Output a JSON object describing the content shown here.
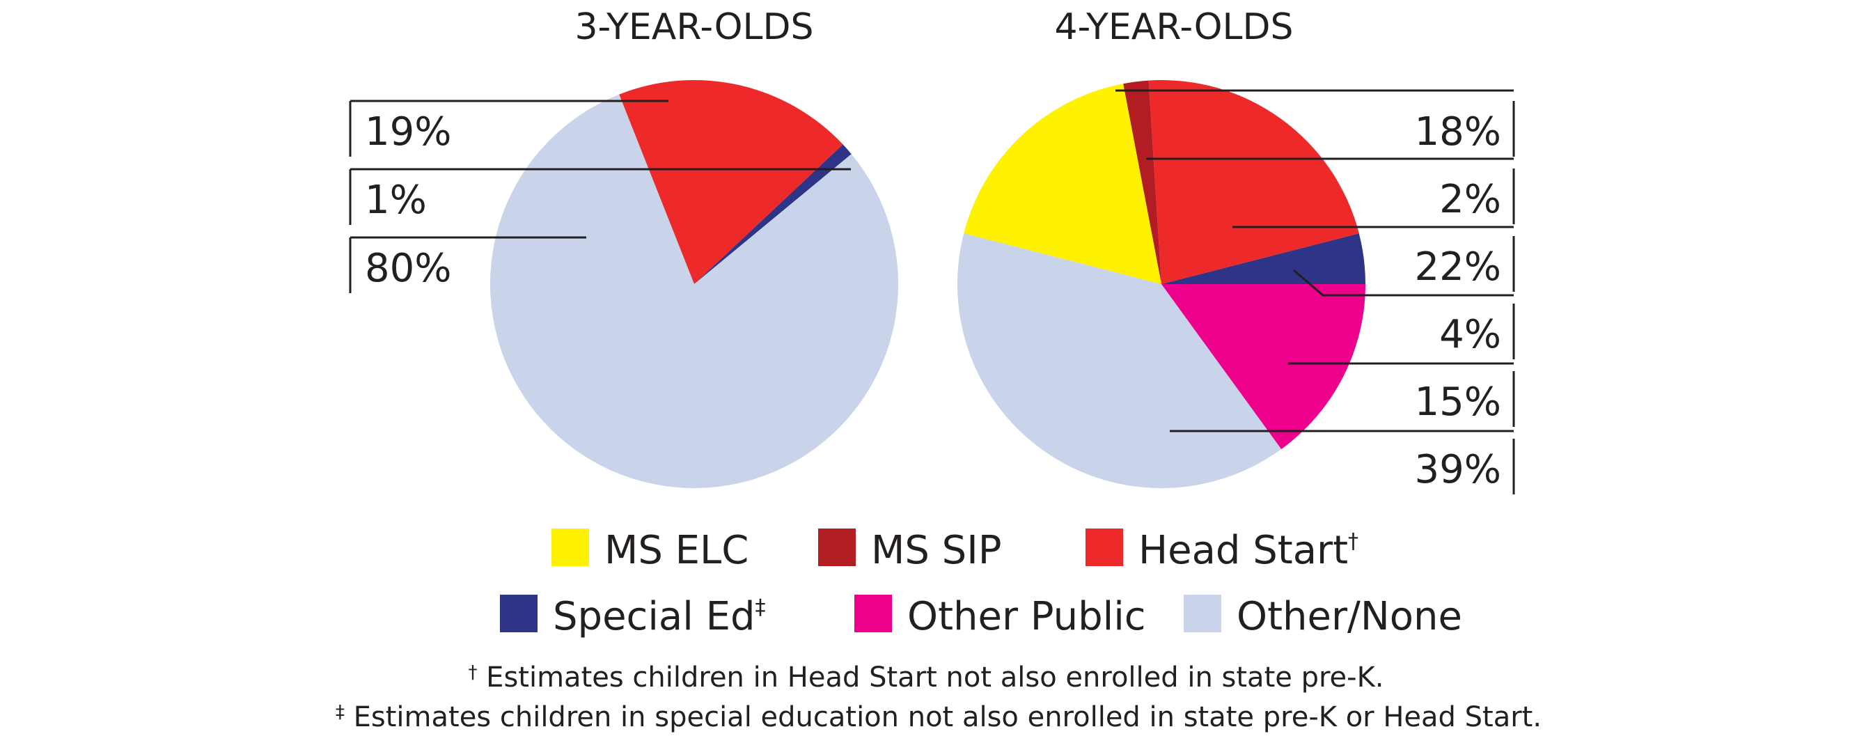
{
  "chart_data": [
    {
      "type": "pie",
      "title": "3-YEAR-OLDS",
      "slices": [
        {
          "label": "MS ELC",
          "value": 0
        },
        {
          "label": "MS SIP",
          "value": 0
        },
        {
          "label": "Head Start†",
          "value": 19
        },
        {
          "label": "Special Ed‡",
          "value": 1
        },
        {
          "label": "Other Public",
          "value": 0
        },
        {
          "label": "Other/None",
          "value": 80
        }
      ],
      "value_labels": [
        "19%",
        "1%",
        "80%"
      ]
    },
    {
      "type": "pie",
      "title": "4-YEAR-OLDS",
      "slices": [
        {
          "label": "MS ELC",
          "value": 18
        },
        {
          "label": "MS SIP",
          "value": 2
        },
        {
          "label": "Head Start†",
          "value": 22
        },
        {
          "label": "Special Ed‡",
          "value": 4
        },
        {
          "label": "Other Public",
          "value": 15
        },
        {
          "label": "Other/None",
          "value": 39
        }
      ],
      "value_labels": [
        "18%",
        "2%",
        "22%",
        "4%",
        "15%",
        "39%"
      ]
    }
  ],
  "legend": [
    {
      "base": "MS ELC",
      "mark": "",
      "color": "#fff200"
    },
    {
      "base": "MS SIP",
      "mark": "",
      "color": "#b11d23"
    },
    {
      "base": "Head Start",
      "mark": "†",
      "color": "#ed2a29"
    },
    {
      "base": "Special Ed",
      "mark": "‡",
      "color": "#2e3586"
    },
    {
      "base": "Other Public",
      "mark": "",
      "color": "#ec008c"
    },
    {
      "base": "Other/None",
      "mark": "",
      "color": "#c9d4ea"
    }
  ],
  "footnotes": {
    "dagger_mark": "†",
    "dagger_text": " Estimates children in Head Start not also enrolled in state pre-K.",
    "ddagger_mark": "‡",
    "ddagger_text": " Estimates children in special education not also enrolled in state pre-K or Head Start."
  }
}
